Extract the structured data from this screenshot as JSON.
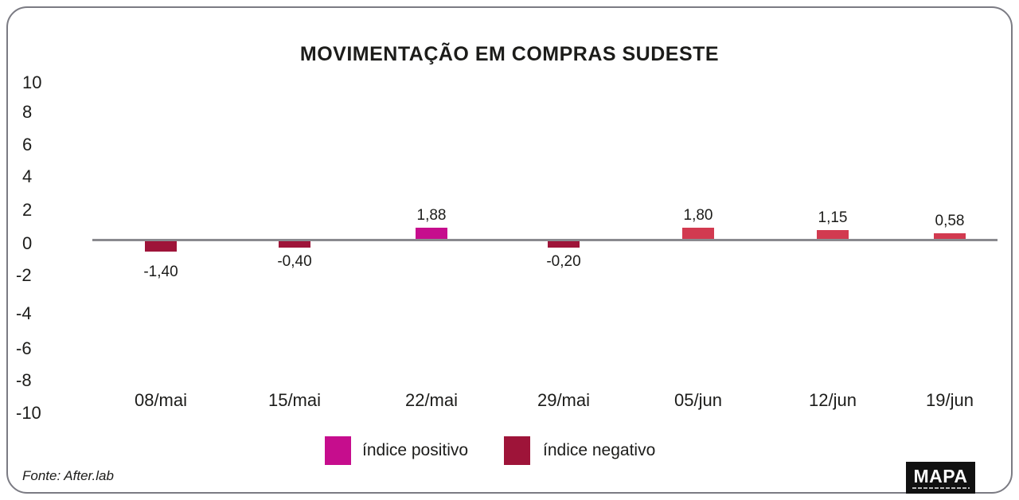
{
  "title": "MOVIMENTAÇÃO EM COMPRAS SUDESTE",
  "source": "Fonte: After.lab",
  "logo": {
    "text": "MAPA"
  },
  "legend": {
    "positive": {
      "label": "índice positivo",
      "color": "#c60d8d"
    },
    "negative": {
      "label": "índice negativo",
      "color": "#9e1439"
    }
  },
  "colors": {
    "positive_magenta": "#c60d8d",
    "positive_crimson": "#d23a50",
    "negative_maroon": "#9e1439",
    "axis_line": "#8a8a8f",
    "frame_border": "#7b7b83",
    "text": "#1c1c1a"
  },
  "chart_data": {
    "type": "bar",
    "title": "MOVIMENTAÇÃO EM COMPRAS SUDESTE",
    "categories": [
      "08/mai",
      "15/mai",
      "22/mai",
      "29/mai",
      "05/jun",
      "12/jun",
      "19/jun"
    ],
    "values": [
      -1.4,
      -0.4,
      1.88,
      -0.2,
      1.8,
      1.15,
      0.58
    ],
    "value_labels": [
      "-1,40",
      "-0,40",
      "1,88",
      "-0,20",
      "1,80",
      "1,15",
      "0,58"
    ],
    "bar_colors": [
      "#9e1439",
      "#9e1439",
      "#c60d8d",
      "#9e1439",
      "#d23a50",
      "#d23a50",
      "#d23a50"
    ],
    "y_ticks": [
      "10",
      "8",
      "6",
      "4",
      "2",
      "0",
      "-2",
      "-4",
      "-6",
      "-8",
      "-10"
    ],
    "ylim": [
      -10,
      10
    ],
    "xlabel": "",
    "ylabel": "",
    "grid": false,
    "legend_position": "bottom",
    "legend": [
      {
        "label": "índice positivo",
        "color": "#c60d8d"
      },
      {
        "label": "índice negativo",
        "color": "#9e1439"
      }
    ],
    "source": "Fonte: After.lab"
  }
}
